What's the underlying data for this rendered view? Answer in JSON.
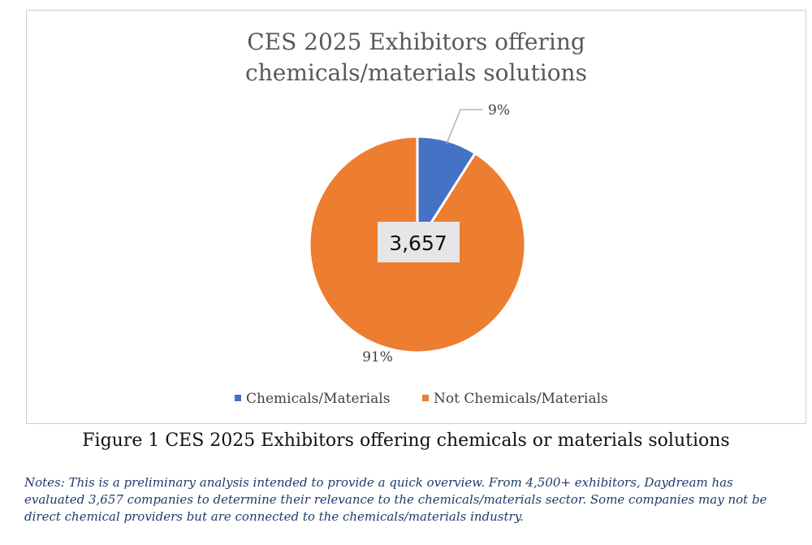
{
  "chart_data": {
    "type": "pie",
    "title": "CES 2025 Exhibitors offering chemicals/materials solutions",
    "center_label": "3,657",
    "slices": [
      {
        "name": "Chemicals/Materials",
        "value": 9,
        "label": "9%",
        "color": "#4472C4"
      },
      {
        "name": "Not Chemicals/Materials",
        "value": 91,
        "label": "91%",
        "color": "#ED7D31"
      }
    ],
    "legend_position": "bottom"
  },
  "figure_caption": "Figure 1 CES 2025 Exhibitors offering chemicals or materials solutions",
  "notes": "Notes: This is a preliminary analysis intended to provide a quick overview. From 4,500+ exhibitors, Daydream has evaluated 3,657 companies to determine their relevance to the chemicals/materials sector. Some companies may not be direct chemical providers but are connected to the chemicals/materials industry."
}
